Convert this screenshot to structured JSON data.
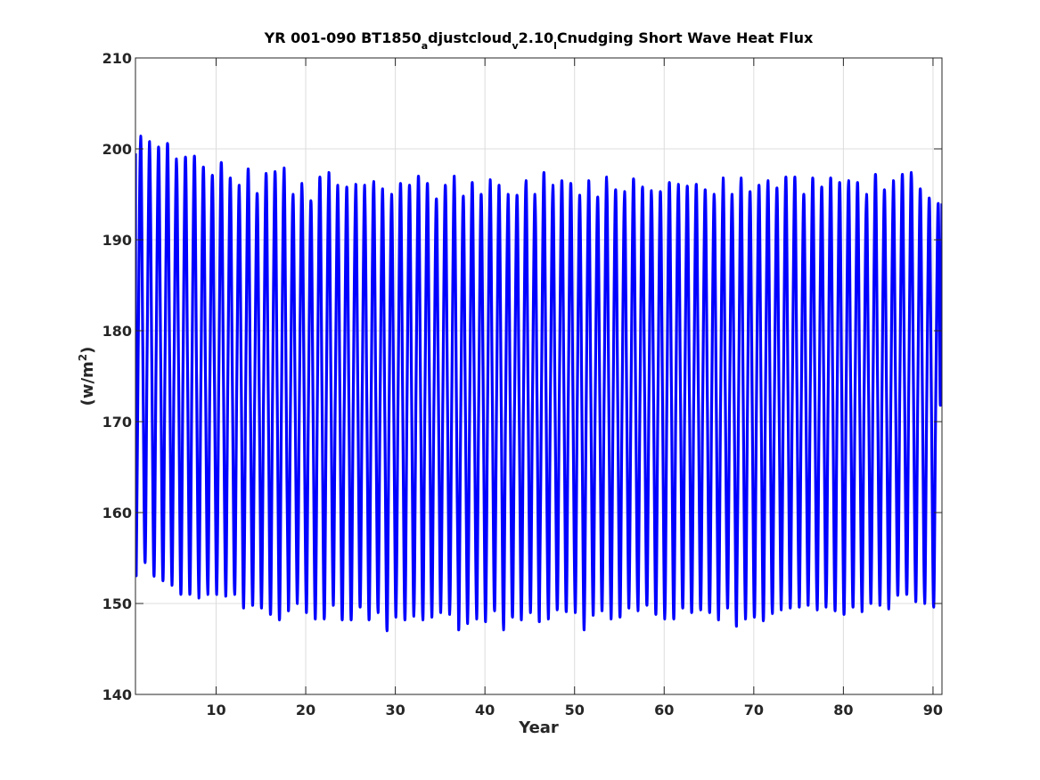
{
  "chart_data": {
    "type": "line",
    "title": {
      "parts": [
        {
          "text": "YR 001-090 BT1850",
          "sub": false
        },
        {
          "text": "a",
          "sub": true
        },
        {
          "text": "djustcloud",
          "sub": false
        },
        {
          "text": "v",
          "sub": true
        },
        {
          "text": "2.10",
          "sub": false
        },
        {
          "text": "l",
          "sub": true
        },
        {
          "text": "Cnudging Short Wave Heat Flux",
          "sub": false
        }
      ]
    },
    "xlabel": "Year",
    "ylabel": {
      "base": "(w/m",
      "sup": "2",
      "close": ")"
    },
    "xlim": [
      1,
      91
    ],
    "ylim": [
      140,
      210
    ],
    "xticks": [
      10,
      20,
      30,
      40,
      50,
      60,
      70,
      80,
      90
    ],
    "yticks": [
      140,
      150,
      160,
      170,
      180,
      190,
      200,
      210
    ],
    "grid": true,
    "line_color": "#0000ff",
    "series": [
      {
        "description_points": "annual max/min extremes per year, seasonal cycle",
        "start_value": 199.5,
        "end_value": 194.0,
        "annual_max": [
          201.4,
          200.8,
          200.2,
          200.6,
          198.9,
          199.1,
          199.2,
          198.0,
          197.1,
          198.5,
          196.8,
          196.0,
          197.8,
          195.1,
          197.3,
          197.5,
          197.9,
          195.0,
          196.2,
          194.3,
          196.9,
          197.4,
          196.0,
          195.8,
          196.1,
          196.0,
          196.4,
          195.6,
          195.0,
          196.2,
          196.0,
          197.0,
          196.2,
          194.5,
          196.0,
          197.0,
          194.8,
          196.3,
          195.0,
          196.6,
          196.0,
          195.0,
          194.9,
          196.5,
          195.0,
          197.4,
          196.0,
          196.5,
          196.2,
          194.9,
          196.5,
          194.7,
          196.9,
          195.5,
          195.3,
          196.7,
          195.8,
          195.4,
          195.3,
          196.3,
          196.1,
          195.9,
          196.1,
          195.5,
          195.0,
          196.8,
          195.0,
          196.8,
          195.3,
          196.0,
          196.5,
          195.7,
          196.9,
          196.9,
          195.0,
          196.8,
          195.8,
          196.8,
          196.3,
          196.5,
          196.3,
          195.0,
          197.2,
          195.5,
          196.5,
          197.2,
          197.4,
          195.6,
          194.6,
          194.0
        ],
        "annual_min": [
          153.5,
          154.5,
          153.0,
          152.5,
          152.0,
          151.0,
          151.0,
          150.6,
          151.0,
          151.0,
          150.8,
          151.0,
          149.5,
          149.8,
          149.5,
          148.8,
          148.2,
          149.2,
          150.0,
          149.0,
          148.3,
          148.3,
          149.8,
          148.2,
          148.2,
          149.6,
          148.2,
          149.0,
          147.0,
          148.5,
          148.2,
          148.6,
          148.2,
          148.5,
          149.0,
          148.8,
          147.1,
          147.8,
          148.3,
          148.0,
          149.2,
          147.1,
          148.5,
          148.2,
          149.0,
          148.0,
          148.3,
          149.3,
          149.1,
          149.0,
          147.1,
          148.7,
          149.2,
          148.3,
          148.5,
          149.5,
          149.2,
          149.8,
          148.8,
          148.3,
          148.3,
          149.5,
          149.0,
          149.3,
          149.0,
          148.2,
          149.5,
          147.5,
          148.3,
          148.5,
          148.1,
          148.9,
          149.3,
          149.5,
          149.6,
          149.8,
          149.3,
          149.6,
          149.2,
          148.8,
          149.6,
          149.1,
          150.0,
          149.8,
          149.4,
          150.9,
          151.0,
          150.2,
          150.0,
          149.6
        ]
      }
    ]
  }
}
